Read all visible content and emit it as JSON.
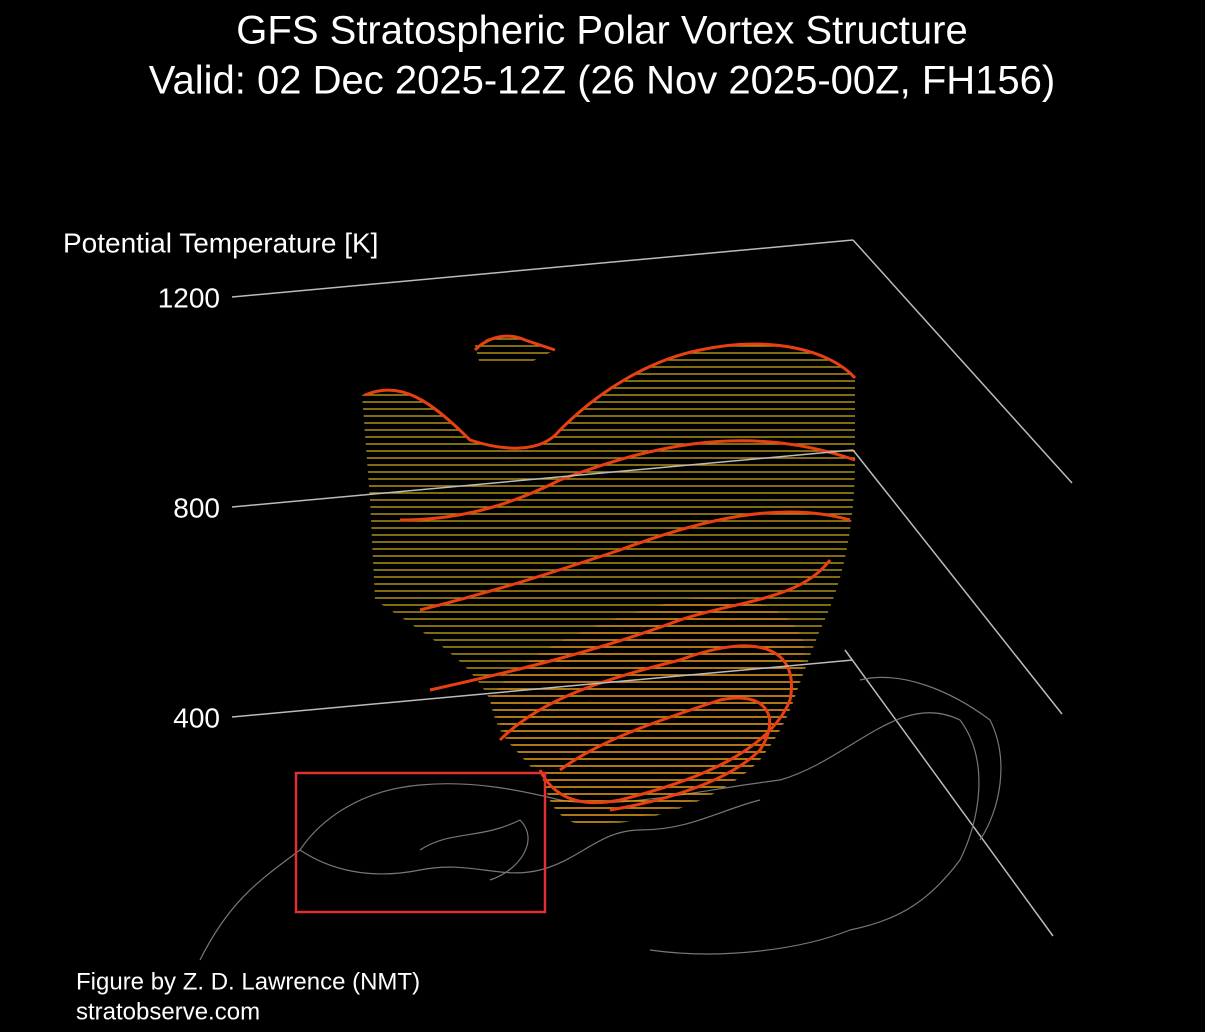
{
  "chart_data": {
    "type": "isentropic-3d",
    "title": "GFS Stratospheric Polar Vortex Structure",
    "subtitle": "Valid: 02 Dec 2025-12Z  (26 Nov 2025-00Z, FH156)",
    "ylabel": "Potential Temperature [K]",
    "ylim": [
      400,
      1200
    ],
    "yticks": [
      400,
      800,
      1200
    ],
    "annotations": [
      "Figure by Z. D. Lawrence (NMT)",
      "stratobserve.com"
    ]
  }
}
